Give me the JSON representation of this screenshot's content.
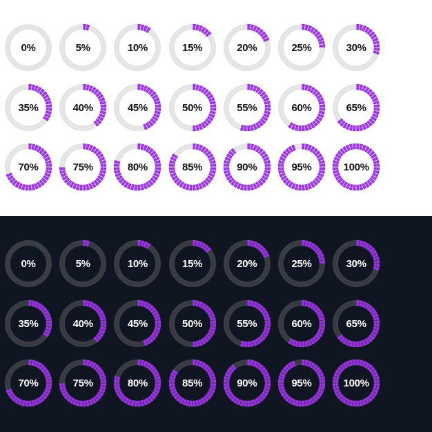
{
  "colors": {
    "accent": "#9b30e8",
    "light_background": "#ffffff",
    "light_track": "#e4e4e4",
    "light_text": "#111111",
    "dark_background": "#0f1521",
    "dark_track": "#3a3d44",
    "dark_text": "#ffffff"
  },
  "light_panel": {
    "indicators": [
      {
        "label": "0%",
        "value": 0
      },
      {
        "label": "5%",
        "value": 5
      },
      {
        "label": "10%",
        "value": 10
      },
      {
        "label": "15%",
        "value": 15
      },
      {
        "label": "20%",
        "value": 20
      },
      {
        "label": "25%",
        "value": 25
      },
      {
        "label": "30%",
        "value": 30
      },
      {
        "label": "35%",
        "value": 35
      },
      {
        "label": "40%",
        "value": 40
      },
      {
        "label": "45%",
        "value": 45
      },
      {
        "label": "50%",
        "value": 50
      },
      {
        "label": "55%",
        "value": 55
      },
      {
        "label": "60%",
        "value": 60
      },
      {
        "label": "65%",
        "value": 65
      },
      {
        "label": "70%",
        "value": 70
      },
      {
        "label": "75%",
        "value": 75
      },
      {
        "label": "80%",
        "value": 80
      },
      {
        "label": "85%",
        "value": 85
      },
      {
        "label": "90%",
        "value": 90
      },
      {
        "label": "95%",
        "value": 95
      },
      {
        "label": "100%",
        "value": 100
      }
    ]
  },
  "dark_panel": {
    "indicators": [
      {
        "label": "0%",
        "value": 0
      },
      {
        "label": "5%",
        "value": 5
      },
      {
        "label": "10%",
        "value": 10
      },
      {
        "label": "15%",
        "value": 15
      },
      {
        "label": "20%",
        "value": 20
      },
      {
        "label": "25%",
        "value": 25
      },
      {
        "label": "30%",
        "value": 30
      },
      {
        "label": "35%",
        "value": 35
      },
      {
        "label": "40%",
        "value": 40
      },
      {
        "label": "45%",
        "value": 45
      },
      {
        "label": "50%",
        "value": 50
      },
      {
        "label": "55%",
        "value": 55
      },
      {
        "label": "60%",
        "value": 60
      },
      {
        "label": "65%",
        "value": 65
      },
      {
        "label": "70%",
        "value": 70
      },
      {
        "label": "75%",
        "value": 75
      },
      {
        "label": "80%",
        "value": 80
      },
      {
        "label": "85%",
        "value": 85
      },
      {
        "label": "90%",
        "value": 90
      },
      {
        "label": "95%",
        "value": 95
      },
      {
        "label": "100%",
        "value": 100
      }
    ]
  }
}
